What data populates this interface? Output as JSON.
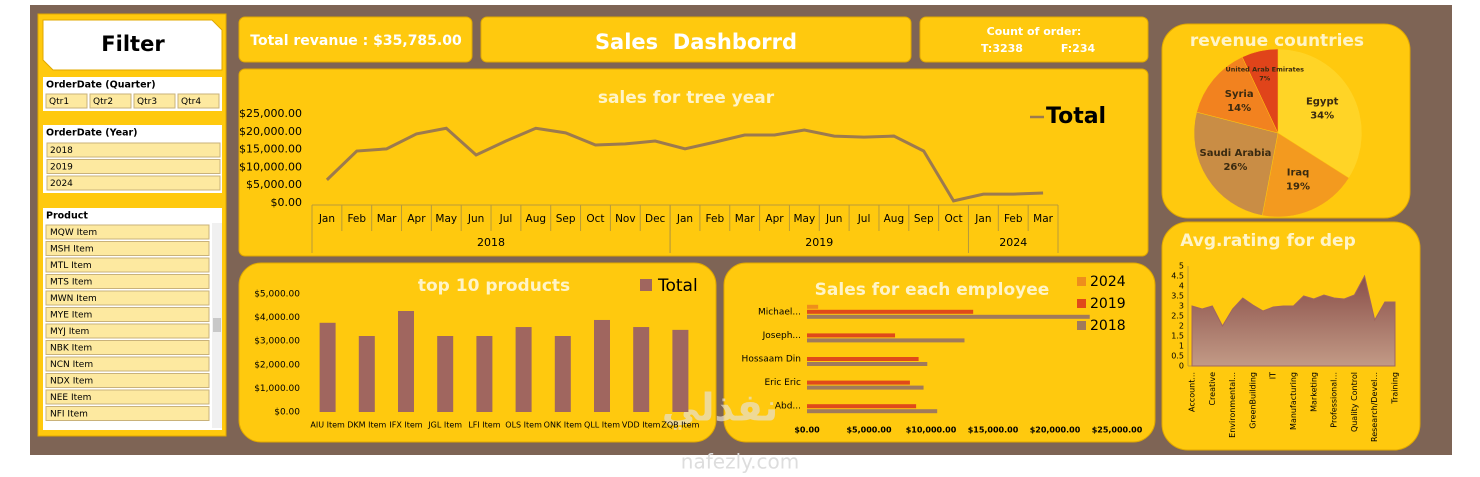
{
  "filter": {
    "title": "Filter",
    "quarter_label": "OrderDate (Quarter)",
    "quarters": [
      "Qtr1",
      "Qtr2",
      "Qtr3",
      "Qtr4"
    ],
    "year_label": "OrderDate (Year)",
    "years": [
      "2018",
      "2019",
      "2024"
    ],
    "product_label": "Product",
    "products": [
      "MQW Item",
      "MSH Item",
      "MTL Item",
      "MTS Item",
      "MWN Item",
      "MYE Item",
      "MYJ Item",
      "NBK Item",
      "NCN Item",
      "NDX Item",
      "NEE Item",
      "NFI Item"
    ]
  },
  "cards": {
    "revenue": "Total revanue : $35,785.00",
    "title": "Sales  Dashborrd",
    "count_label": "Count of order:",
    "count_t": "T:3238",
    "count_f": "F:234"
  },
  "watermark": {
    "arabic": "نفذلي",
    "url": "nafezly.com"
  },
  "chart_data": [
    {
      "type": "line",
      "title": "sales for tree year",
      "categories": [
        "Jan",
        "Feb",
        "Mar",
        "Apr",
        "May",
        "Jun",
        "Jul",
        "Aug",
        "Sep",
        "Oct",
        "Nov",
        "Dec",
        "Jan",
        "Feb",
        "Mar",
        "Apr",
        "May",
        "Jun",
        "Jul",
        "Aug",
        "Sep",
        "Oct",
        "Jan",
        "Feb",
        "Mar"
      ],
      "x_groups": [
        {
          "label": "2018",
          "count": 12
        },
        {
          "label": "2019",
          "count": 10
        },
        {
          "label": "2024",
          "count": 3
        }
      ],
      "series": [
        {
          "name": "Total",
          "color": "#9c7a4e",
          "values": [
            6500,
            14600,
            15200,
            19400,
            21000,
            13500,
            17400,
            21000,
            19700,
            16300,
            16600,
            17400,
            15200,
            17100,
            19100,
            19100,
            20500,
            18800,
            18500,
            18800,
            14600,
            600,
            2500,
            2500,
            2800
          ]
        }
      ],
      "ylim": [
        0,
        25000
      ],
      "yticks": [
        {
          "value": 0,
          "label": "$0.00"
        },
        {
          "value": 5000,
          "label": "$5,000.00"
        },
        {
          "value": 10000,
          "label": "$10,000.00"
        },
        {
          "value": 15000,
          "label": "$15,000.00"
        },
        {
          "value": 20000,
          "label": "$20,000.00"
        },
        {
          "value": 25000,
          "label": "$25,000.00"
        }
      ],
      "legend": "right"
    },
    {
      "type": "bar",
      "title": "top 10 products",
      "categories": [
        "AIU Item",
        "DKM Item",
        "IFX Item",
        "JGL Item",
        "LFI Item",
        "OLS Item",
        "ONK Item",
        "QLL Item",
        "VDD Item",
        "ZQB Item"
      ],
      "series": [
        {
          "name": "Total",
          "color": "#a0665f",
          "values": [
            3780,
            3220,
            4280,
            3220,
            3220,
            3600,
            3220,
            3900,
            3600,
            3480
          ]
        }
      ],
      "ylim": [
        0,
        5000
      ],
      "yticks": [
        {
          "value": 0,
          "label": "$0.00"
        },
        {
          "value": 1000,
          "label": "$1,000.00"
        },
        {
          "value": 2000,
          "label": "$2,000.00"
        },
        {
          "value": 3000,
          "label": "$3,000.00"
        },
        {
          "value": 4000,
          "label": "$4,000.00"
        },
        {
          "value": 5000,
          "label": "$5,000.00"
        }
      ],
      "legend": "top-right"
    },
    {
      "type": "barh",
      "title": "Sales for each employee",
      "categories": [
        "Michael...",
        "Joseph...",
        "Hossaam Din",
        "Eric Eric",
        "Abd..."
      ],
      "series": [
        {
          "name": "2024",
          "color": "#ee8e1c",
          "values": [
            900,
            null,
            null,
            null,
            null
          ]
        },
        {
          "name": "2019",
          "color": "#e04a1a",
          "values": [
            13400,
            7100,
            9000,
            8300,
            8800
          ]
        },
        {
          "name": "2018",
          "color": "#a07a5c",
          "values": [
            22800,
            12700,
            9700,
            9400,
            10500
          ]
        }
      ],
      "xlim": [
        0,
        25000
      ],
      "xticks": [
        {
          "value": 0,
          "label": "$0.00"
        },
        {
          "value": 5000,
          "label": "$5,000.00"
        },
        {
          "value": 10000,
          "label": "$10,000.00"
        },
        {
          "value": 15000,
          "label": "$15,000.00"
        },
        {
          "value": 20000,
          "label": "$20,000.00"
        },
        {
          "value": 25000,
          "label": "$25,000.00"
        }
      ],
      "legend": "top-right"
    },
    {
      "type": "pie",
      "title": "revenue countries",
      "categories": [
        "Egypt",
        "Iraq",
        "Saudi Arabia",
        "Syria",
        "United Arab Emirates"
      ],
      "values": [
        34,
        19,
        26,
        14,
        7
      ],
      "value_labels": [
        "34%",
        "19%",
        "26%",
        "14%",
        "7%"
      ],
      "colors": [
        "#ffd426",
        "#f39a1f",
        "#c98d45",
        "#f2821f",
        "#e0441a"
      ]
    },
    {
      "type": "area",
      "title": "Avg.rating for dep",
      "categories": [
        "Account...",
        null,
        "Creative",
        null,
        "Environmental...",
        null,
        "GreenBuilding",
        null,
        "IT",
        null,
        "Manufacturing",
        null,
        "Marketing",
        null,
        "Professional...",
        null,
        "Quality Control",
        null,
        "Research/Devel...",
        null,
        "Training"
      ],
      "values": [
        3.0,
        2.85,
        3.0,
        2.0,
        2.85,
        3.4,
        3.05,
        2.75,
        2.95,
        3.0,
        3.0,
        3.5,
        3.35,
        3.55,
        3.4,
        3.35,
        3.55,
        4.5,
        2.3,
        3.2,
        3.2
      ],
      "color": "#a0665f",
      "ylim": [
        0,
        5
      ],
      "yticks": [
        0,
        0.5,
        1,
        1.5,
        2,
        2.5,
        3,
        3.5,
        4,
        4.5,
        5
      ]
    }
  ]
}
